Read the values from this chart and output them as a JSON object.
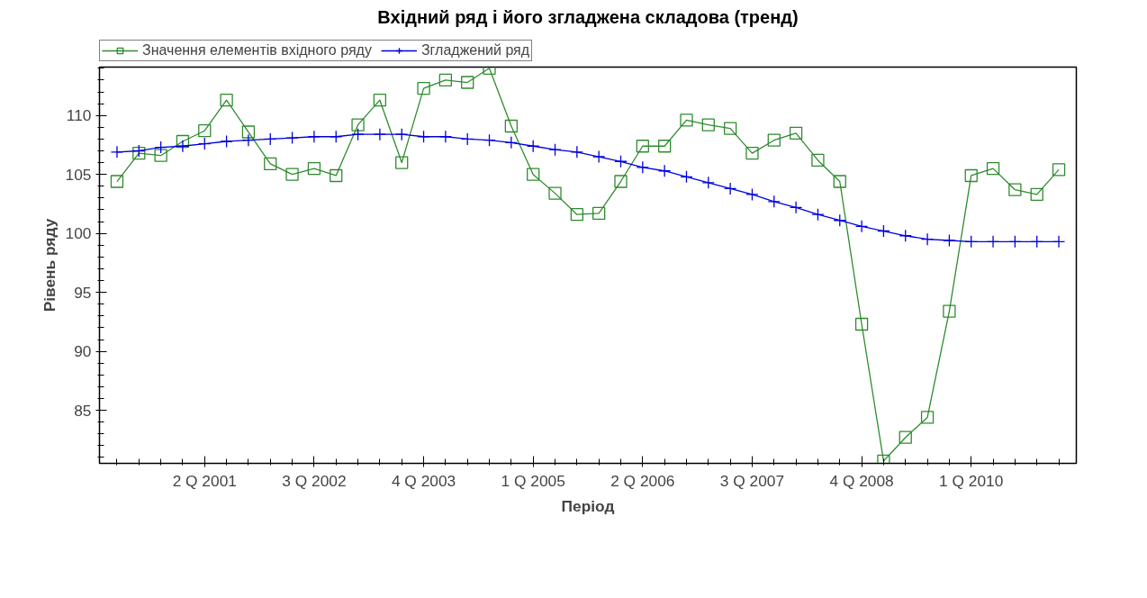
{
  "chart_data": {
    "type": "line",
    "title": "Вхідний ряд і його згладжена складова (тренд)",
    "xlabel": "Період",
    "ylabel": "Рівень ряду",
    "categories": [
      null,
      null,
      null,
      null,
      "2 Q 2001",
      null,
      null,
      null,
      null,
      "3 Q 2002",
      null,
      null,
      null,
      null,
      "4 Q 2003",
      null,
      null,
      null,
      null,
      "1 Q 2005",
      null,
      null,
      null,
      null,
      "2 Q 2006",
      null,
      null,
      null,
      null,
      "3 Q 2007",
      null,
      null,
      null,
      null,
      "4 Q 2008",
      null,
      null,
      null,
      null,
      "1 Q 2010",
      null,
      null,
      null,
      null
    ],
    "series": [
      {
        "name": "Значення елементів вхідного ряду",
        "color": "#2e8b2e",
        "marker": "square",
        "values": [
          104.4,
          106.8,
          106.6,
          107.8,
          108.7,
          111.3,
          108.6,
          105.9,
          105.0,
          105.5,
          104.9,
          109.2,
          111.3,
          106.0,
          112.3,
          113.0,
          112.8,
          114.0,
          109.1,
          105.0,
          103.4,
          101.6,
          101.7,
          104.4,
          107.4,
          107.4,
          109.6,
          109.2,
          108.9,
          106.8,
          107.9,
          108.5,
          106.2,
          104.4,
          92.3,
          80.7,
          82.7,
          84.4,
          93.4,
          104.9,
          105.5,
          103.7,
          103.3,
          105.4
        ]
      },
      {
        "name": "Згладжений ряд",
        "color": "#0000dd",
        "marker": "cross",
        "values": [
          106.9,
          107.0,
          107.3,
          107.4,
          107.6,
          107.8,
          107.9,
          108.0,
          108.1,
          108.2,
          108.2,
          108.4,
          108.4,
          108.4,
          108.2,
          108.2,
          108.0,
          107.9,
          107.7,
          107.4,
          107.1,
          106.9,
          106.5,
          106.1,
          105.6,
          105.3,
          104.8,
          104.3,
          103.8,
          103.3,
          102.7,
          102.2,
          101.6,
          101.1,
          100.6,
          100.2,
          99.8,
          99.5,
          99.4,
          99.3,
          99.3,
          99.3,
          99.3,
          99.3
        ]
      }
    ],
    "ylim": [
      80.5,
      114.1
    ],
    "yticks": [
      85,
      90,
      95,
      100,
      105,
      110
    ],
    "grid": false,
    "legend": "top",
    "line_style": "solid"
  }
}
